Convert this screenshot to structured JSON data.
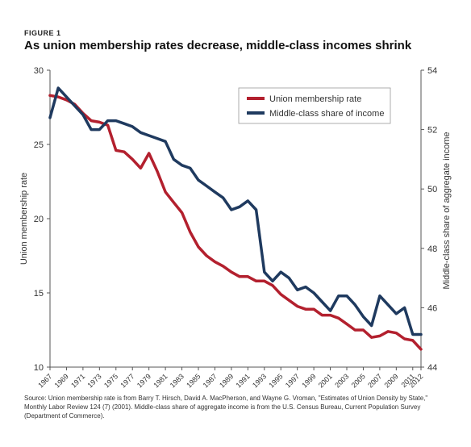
{
  "header": {
    "figure_label": "FIGURE 1",
    "title": "As union membership rates decrease, middle-class incomes shrink"
  },
  "source_text": "Source: Union membership rate is from Barry T. Hirsch, David A. MacPherson, and Wayne G. Vroman, \"Estimates of Union Density by State,\" Monthly Labor Review 124 (7) (2001). Middle-class share of aggregate income is from the U.S. Census Bureau, Current Population Survey (Department of Commerce).",
  "chart_data": {
    "type": "line",
    "title": "As union membership rates decrease, middle-class incomes shrink",
    "xlabel": "",
    "ylabel": "Union membership rate",
    "y2label": "Middle-class share of aggregate income",
    "xlim": [
      1967,
      2012
    ],
    "ylim": [
      10,
      30
    ],
    "y2lim": [
      44,
      54
    ],
    "yticks": [
      10,
      15,
      20,
      25,
      30
    ],
    "y2ticks": [
      44,
      46,
      48,
      50,
      52,
      54
    ],
    "xticks": [
      1967,
      1969,
      1971,
      1973,
      1975,
      1977,
      1979,
      1981,
      1983,
      1985,
      1987,
      1989,
      1991,
      1993,
      1995,
      1997,
      1999,
      2001,
      2003,
      2005,
      2007,
      2009,
      2011,
      2012
    ],
    "grid": false,
    "legend_position": "top-right",
    "x": [
      1967,
      1968,
      1969,
      1970,
      1971,
      1972,
      1973,
      1974,
      1975,
      1976,
      1977,
      1978,
      1979,
      1980,
      1981,
      1982,
      1983,
      1984,
      1985,
      1986,
      1987,
      1988,
      1989,
      1990,
      1991,
      1992,
      1993,
      1994,
      1995,
      1996,
      1997,
      1998,
      1999,
      2000,
      2001,
      2002,
      2003,
      2004,
      2005,
      2006,
      2007,
      2008,
      2009,
      2010,
      2011,
      2012
    ],
    "series": [
      {
        "name": "Union membership rate",
        "axis": "left",
        "color": "#b3202e",
        "values": [
          28.3,
          28.2,
          28.0,
          27.7,
          27.1,
          26.6,
          26.5,
          26.3,
          24.6,
          24.5,
          24.0,
          23.4,
          24.4,
          23.2,
          21.8,
          21.1,
          20.4,
          19.1,
          18.1,
          17.5,
          17.1,
          16.8,
          16.4,
          16.1,
          16.1,
          15.8,
          15.8,
          15.5,
          14.9,
          14.5,
          14.1,
          13.9,
          13.9,
          13.5,
          13.5,
          13.3,
          12.9,
          12.5,
          12.5,
          12.0,
          12.1,
          12.4,
          12.3,
          11.9,
          11.8,
          11.2
        ]
      },
      {
        "name": "Middle-class share of income",
        "axis": "right",
        "color": "#1f3a5f",
        "values": [
          52.4,
          53.4,
          53.1,
          52.8,
          52.5,
          52.0,
          52.0,
          52.3,
          52.3,
          52.2,
          52.1,
          51.9,
          51.8,
          51.7,
          51.6,
          51.0,
          50.8,
          50.7,
          50.3,
          50.1,
          49.9,
          49.7,
          49.3,
          49.4,
          49.6,
          49.3,
          47.2,
          46.9,
          47.2,
          47.0,
          46.6,
          46.7,
          46.5,
          46.2,
          45.9,
          46.4,
          46.4,
          46.1,
          45.7,
          45.4,
          46.4,
          46.1,
          45.8,
          46.0,
          45.1,
          45.1
        ]
      }
    ]
  }
}
